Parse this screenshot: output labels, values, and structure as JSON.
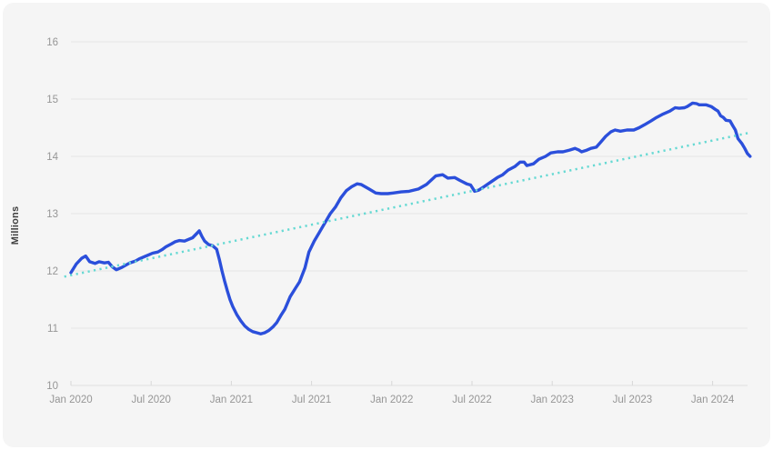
{
  "chart_data": {
    "type": "line",
    "title": "",
    "ylabel": "Millions",
    "xlabel": "",
    "x_unit": "months_since_jan_2020",
    "ylim": [
      10,
      16
    ],
    "yticks": [
      10,
      11,
      12,
      13,
      14,
      15,
      16
    ],
    "xticks": [
      {
        "m": 0,
        "label": "Jan 2020"
      },
      {
        "m": 6,
        "label": "Jul 2020"
      },
      {
        "m": 12,
        "label": "Jan 2021"
      },
      {
        "m": 18,
        "label": "Jul 2021"
      },
      {
        "m": 24,
        "label": "Jan 2022"
      },
      {
        "m": 30,
        "label": "Jul 2022"
      },
      {
        "m": 36,
        "label": "Jan 2023"
      },
      {
        "m": 42,
        "label": "Jul 2023"
      },
      {
        "m": 48,
        "label": "Jan 2024"
      }
    ],
    "grid": true,
    "legend_position": "none",
    "series": [
      {
        "name": "millions-series",
        "style": "solid",
        "color": "#2b4fdb",
        "points": [
          [
            0,
            11.97
          ],
          [
            0.4,
            12.12
          ],
          [
            0.8,
            12.22
          ],
          [
            1.1,
            12.26
          ],
          [
            1.4,
            12.16
          ],
          [
            1.8,
            12.13
          ],
          [
            2.1,
            12.16
          ],
          [
            2.5,
            12.14
          ],
          [
            2.8,
            12.15
          ],
          [
            3.1,
            12.07
          ],
          [
            3.4,
            12.02
          ],
          [
            3.8,
            12.06
          ],
          [
            4.1,
            12.1
          ],
          [
            4.4,
            12.14
          ],
          [
            4.8,
            12.17
          ],
          [
            5.1,
            12.21
          ],
          [
            5.5,
            12.25
          ],
          [
            5.8,
            12.28
          ],
          [
            6.1,
            12.31
          ],
          [
            6.5,
            12.33
          ],
          [
            6.8,
            12.37
          ],
          [
            7.1,
            12.42
          ],
          [
            7.5,
            12.47
          ],
          [
            7.8,
            12.51
          ],
          [
            8.1,
            12.53
          ],
          [
            8.5,
            12.52
          ],
          [
            8.8,
            12.55
          ],
          [
            9.1,
            12.58
          ],
          [
            9.4,
            12.65
          ],
          [
            9.6,
            12.7
          ],
          [
            9.8,
            12.6
          ],
          [
            10,
            12.52
          ],
          [
            10.3,
            12.46
          ],
          [
            10.6,
            12.44
          ],
          [
            10.9,
            12.38
          ],
          [
            11.1,
            12.2
          ],
          [
            11.3,
            12
          ],
          [
            11.5,
            11.82
          ],
          [
            11.7,
            11.65
          ],
          [
            11.9,
            11.5
          ],
          [
            12.1,
            11.38
          ],
          [
            12.4,
            11.24
          ],
          [
            12.7,
            11.13
          ],
          [
            13,
            11.04
          ],
          [
            13.3,
            10.98
          ],
          [
            13.6,
            10.94
          ],
          [
            13.9,
            10.92
          ],
          [
            14.2,
            10.9
          ],
          [
            14.5,
            10.92
          ],
          [
            14.8,
            10.96
          ],
          [
            15.1,
            11.02
          ],
          [
            15.4,
            11.1
          ],
          [
            15.7,
            11.22
          ],
          [
            16,
            11.33
          ],
          [
            16.4,
            11.55
          ],
          [
            16.8,
            11.7
          ],
          [
            17.1,
            11.81
          ],
          [
            17.5,
            12.05
          ],
          [
            17.8,
            12.33
          ],
          [
            18.2,
            12.52
          ],
          [
            18.6,
            12.68
          ],
          [
            19,
            12.84
          ],
          [
            19.4,
            13
          ],
          [
            19.8,
            13.12
          ],
          [
            20.2,
            13.28
          ],
          [
            20.6,
            13.4
          ],
          [
            21,
            13.47
          ],
          [
            21.4,
            13.52
          ],
          [
            21.7,
            13.51
          ],
          [
            22.3,
            13.43
          ],
          [
            22.8,
            13.36
          ],
          [
            23.2,
            13.35
          ],
          [
            23.7,
            13.35
          ],
          [
            24.1,
            13.36
          ],
          [
            24.7,
            13.38
          ],
          [
            25.3,
            13.39
          ],
          [
            26,
            13.43
          ],
          [
            26.6,
            13.51
          ],
          [
            27.3,
            13.66
          ],
          [
            27.8,
            13.68
          ],
          [
            28.2,
            13.62
          ],
          [
            28.7,
            13.63
          ],
          [
            29.1,
            13.58
          ],
          [
            29.6,
            13.52
          ],
          [
            29.9,
            13.5
          ],
          [
            30.2,
            13.39
          ],
          [
            30.5,
            13.41
          ],
          [
            30.9,
            13.47
          ],
          [
            31.4,
            13.55
          ],
          [
            31.9,
            13.63
          ],
          [
            32.3,
            13.68
          ],
          [
            32.7,
            13.76
          ],
          [
            33.2,
            13.82
          ],
          [
            33.6,
            13.9
          ],
          [
            33.9,
            13.9
          ],
          [
            34.1,
            13.84
          ],
          [
            34.6,
            13.87
          ],
          [
            35,
            13.95
          ],
          [
            35.5,
            14
          ],
          [
            35.9,
            14.06
          ],
          [
            36.4,
            14.08
          ],
          [
            36.8,
            14.08
          ],
          [
            37.3,
            14.11
          ],
          [
            37.7,
            14.14
          ],
          [
            38,
            14.11
          ],
          [
            38.2,
            14.08
          ],
          [
            38.6,
            14.11
          ],
          [
            38.9,
            14.14
          ],
          [
            39.3,
            14.16
          ],
          [
            39.6,
            14.24
          ],
          [
            40,
            14.35
          ],
          [
            40.4,
            14.43
          ],
          [
            40.7,
            14.46
          ],
          [
            41.1,
            14.44
          ],
          [
            41.6,
            14.46
          ],
          [
            42.1,
            14.46
          ],
          [
            42.5,
            14.5
          ],
          [
            42.9,
            14.55
          ],
          [
            43.4,
            14.62
          ],
          [
            43.8,
            14.68
          ],
          [
            44.3,
            14.74
          ],
          [
            44.8,
            14.79
          ],
          [
            45.2,
            14.85
          ],
          [
            45.5,
            14.84
          ],
          [
            45.9,
            14.85
          ],
          [
            46.1,
            14.87
          ],
          [
            46.5,
            14.93
          ],
          [
            46.8,
            14.92
          ],
          [
            47,
            14.9
          ],
          [
            47.5,
            14.9
          ],
          [
            47.9,
            14.87
          ],
          [
            48.2,
            14.82
          ],
          [
            48.4,
            14.79
          ],
          [
            48.6,
            14.71
          ],
          [
            48.8,
            14.68
          ],
          [
            49,
            14.63
          ],
          [
            49.3,
            14.62
          ],
          [
            49.5,
            14.54
          ],
          [
            49.7,
            14.46
          ],
          [
            49.9,
            14.31
          ],
          [
            50.2,
            14.22
          ],
          [
            50.4,
            14.14
          ],
          [
            50.6,
            14.05
          ],
          [
            50.8,
            14
          ]
        ]
      },
      {
        "name": "trend-line",
        "style": "dotted",
        "color": "#66d9d3",
        "points": [
          [
            -0.5,
            11.9
          ],
          [
            50.7,
            14.41
          ]
        ]
      }
    ]
  },
  "colors": {
    "page_bg": "#ffffff",
    "card_bg": "#f5f5f5",
    "gridline": "#e5e5e5",
    "axis_line": "#e0e0e0",
    "tick_mark": "#d8d8d8",
    "tick_label": "#969696",
    "axis_title": "#404040",
    "series_blue": "#2b4fdb",
    "trend_teal": "#66d9d3"
  }
}
